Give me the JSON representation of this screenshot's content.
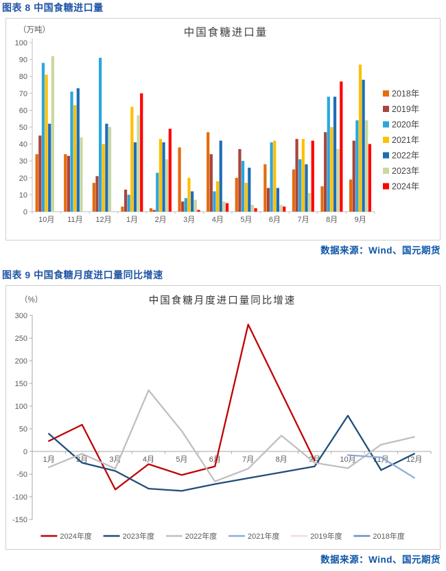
{
  "figure8": {
    "caption": "图表 8  中国食糖进口量",
    "source": "数据来源：Wind、国元期货"
  },
  "figure9": {
    "caption": "图表 9  中国食糖月度进口量同比增速",
    "source": "数据来源：Wind、国元期货"
  },
  "chart_data": [
    {
      "type": "bar",
      "title": "中国食糖进口量",
      "unit_label": "（万吨）",
      "categories": [
        "10月",
        "11月",
        "12月",
        "1月",
        "2月",
        "3月",
        "4月",
        "5月",
        "6月",
        "7月",
        "8月",
        "9月"
      ],
      "series": [
        {
          "name": "2018年",
          "color": "#E36C0F",
          "values": [
            34,
            34,
            17,
            3,
            2,
            38,
            47,
            20,
            28,
            25,
            15,
            19
          ]
        },
        {
          "name": "2019年",
          "color": "#A9453C",
          "values": [
            45,
            33,
            21,
            13,
            1,
            6,
            34,
            37,
            14,
            43,
            47,
            42
          ]
        },
        {
          "name": "2020年",
          "color": "#2BA6DE",
          "values": [
            88,
            71,
            91,
            10,
            23,
            8,
            12,
            30,
            41,
            31,
            68,
            54
          ]
        },
        {
          "name": "2021年",
          "color": "#FFC000",
          "values": [
            81,
            63,
            40,
            62,
            43,
            20,
            18,
            17,
            42,
            43,
            50,
            87
          ]
        },
        {
          "name": "2022年",
          "color": "#1F6DB6",
          "values": [
            52,
            73,
            52,
            41,
            41,
            12,
            42,
            26,
            14,
            28,
            68,
            78
          ]
        },
        {
          "name": "2023年",
          "color": "#C8D8A2",
          "values": [
            92,
            44,
            50,
            57,
            31,
            7,
            6,
            4,
            4,
            11,
            37,
            54
          ]
        },
        {
          "name": "2024年",
          "color": "#FF0000",
          "values": [
            null,
            null,
            null,
            70,
            49,
            1,
            5,
            2,
            3,
            42,
            77,
            40
          ]
        }
      ],
      "ylim": [
        0,
        100
      ],
      "ytick_step": 10,
      "legend_position": "right",
      "grid": false,
      "xlabel": "",
      "ylabel": "万吨"
    },
    {
      "type": "line",
      "title": "中国食糖月度进口量同比增速",
      "unit_label": "（%）",
      "categories": [
        "1月",
        "2月",
        "3月",
        "4月",
        "5月",
        "6月",
        "7月",
        "8月",
        "9月",
        "10月",
        "11月",
        "12月"
      ],
      "series": [
        {
          "name": "2024年度",
          "color": "#C00000",
          "values": [
            23,
            59,
            -84,
            -28,
            -52,
            -33,
            280,
            130,
            -20,
            null,
            null,
            null
          ]
        },
        {
          "name": "2023年度",
          "color": "#1F4E79",
          "values": [
            39,
            -25,
            -43,
            -82,
            -87,
            -72,
            -59,
            -46,
            -33,
            79,
            -41,
            -5
          ]
        },
        {
          "name": "2022年度",
          "color": "#BFBFBF",
          "values": [
            -35,
            -5,
            -38,
            135,
            45,
            -66,
            -38,
            35,
            -25,
            -37,
            15,
            32
          ]
        },
        {
          "name": "2021年度",
          "color": "#8FAADC",
          "values": [
            null,
            null,
            null,
            null,
            null,
            null,
            null,
            null,
            null,
            -8,
            -13,
            -58
          ]
        },
        {
          "name": "2019年度",
          "color": "#F1DCDB",
          "values": [
            null,
            null,
            null,
            null,
            null,
            null,
            null,
            null,
            null,
            null,
            null,
            null
          ]
        },
        {
          "name": "2018年度",
          "color": "#6D8EBF",
          "values": [
            null,
            null,
            null,
            null,
            null,
            null,
            null,
            null,
            null,
            null,
            null,
            null
          ]
        }
      ],
      "ylim": [
        -150,
        300
      ],
      "ytick_step": 50,
      "legend_position": "bottom",
      "grid": false,
      "xlabel": "",
      "ylabel": "%"
    }
  ],
  "style": {
    "axis_color": "#BFBFBF",
    "tick_label_color": "#595959",
    "title_color": "#404040",
    "legend_text_color": "#444444"
  }
}
